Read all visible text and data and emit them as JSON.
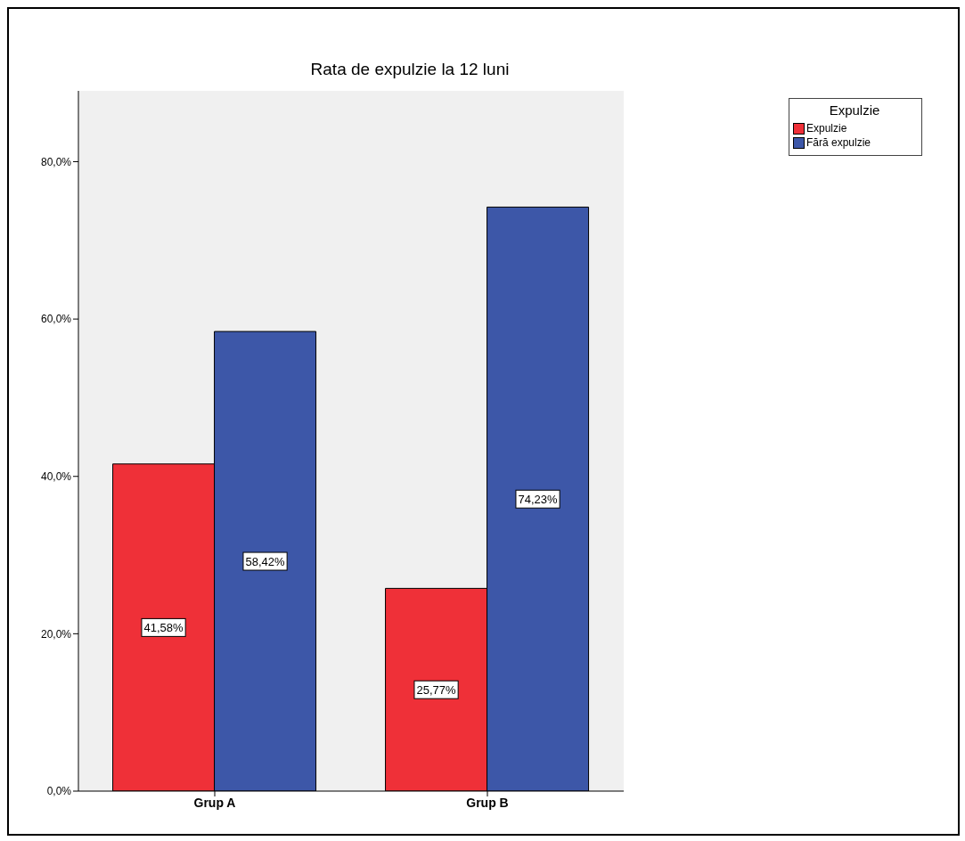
{
  "chart_data": {
    "type": "bar",
    "title": "Rata de expulzie la 12 luni",
    "legend_title": "Expulzie",
    "categories": [
      "Grup A",
      "Grup B"
    ],
    "series": [
      {
        "name": "Expulzie",
        "color": "#ef3038",
        "values": [
          41.58,
          25.77
        ],
        "value_labels": [
          "41,58%",
          "25,77%"
        ]
      },
      {
        "name": "Fără expulzie",
        "color": "#3d57a8",
        "values": [
          58.42,
          74.23
        ],
        "value_labels": [
          "58,42%",
          "74,23%"
        ]
      }
    ],
    "ylim": [
      0,
      89
    ],
    "yticks": [
      {
        "value": 0,
        "label": "0,0%"
      },
      {
        "value": 20,
        "label": "20,0%"
      },
      {
        "value": 40,
        "label": "40,0%"
      },
      {
        "value": 60,
        "label": "60,0%"
      },
      {
        "value": 80,
        "label": "80,0%"
      }
    ],
    "grid": false,
    "legend": "top right"
  }
}
